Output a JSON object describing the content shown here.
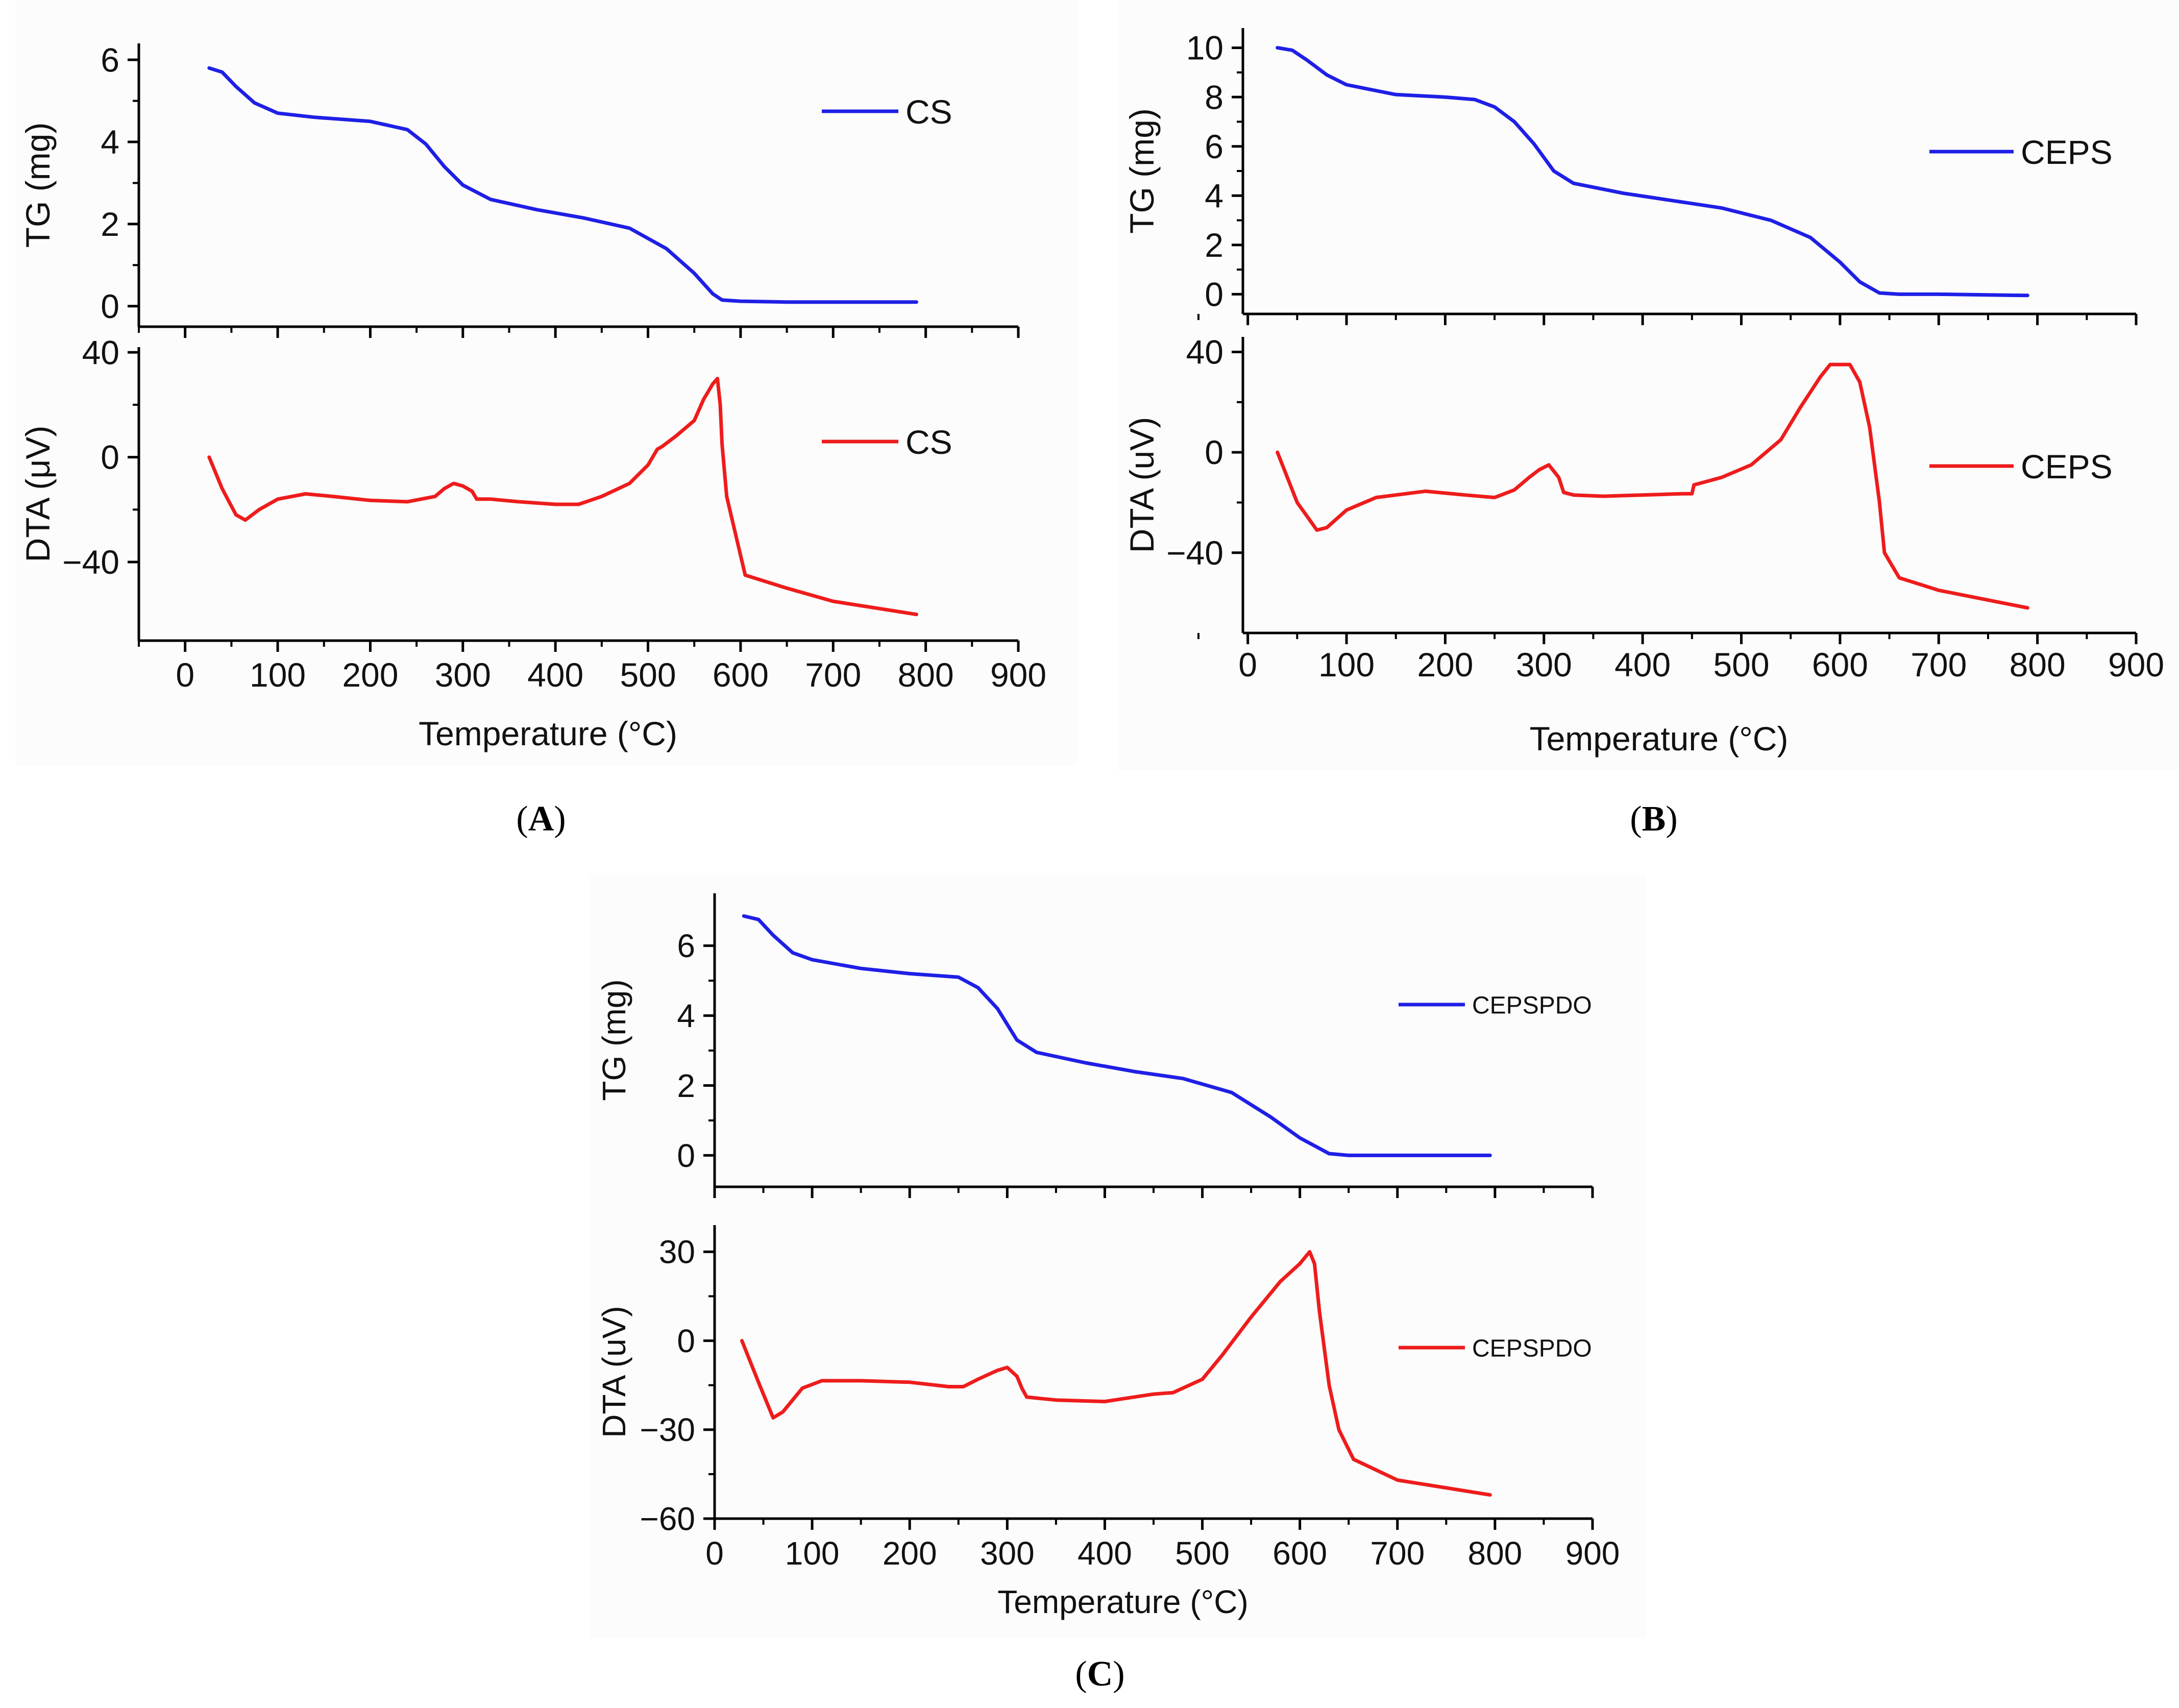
{
  "chart_data": [
    {
      "panel": "A",
      "type": "line",
      "xlabel": "Temperature (°C)",
      "xlim": [
        -50,
        900
      ],
      "xticks": [
        0,
        100,
        200,
        300,
        400,
        500,
        600,
        700,
        800,
        900
      ],
      "tg": {
        "ylabel": "TG (mg)",
        "ylim": [
          -0.5,
          6.4
        ],
        "yticks": [
          0,
          2,
          4,
          6
        ],
        "legend": "CS",
        "color": "#1f1fe6",
        "x": [
          26,
          40,
          55,
          75,
          100,
          140,
          200,
          240,
          260,
          280,
          300,
          330,
          380,
          430,
          480,
          520,
          550,
          570,
          580,
          600,
          650,
          700,
          790
        ],
        "y": [
          5.8,
          5.7,
          5.35,
          4.95,
          4.7,
          4.6,
          4.5,
          4.3,
          3.95,
          3.4,
          2.95,
          2.6,
          2.35,
          2.15,
          1.9,
          1.4,
          0.8,
          0.3,
          0.15,
          0.12,
          0.1,
          0.1,
          0.1
        ]
      },
      "dta": {
        "ylabel": "DTA (μV)",
        "ylim": [
          -70,
          42
        ],
        "yticks": [
          -40,
          0,
          40
        ],
        "legend": "CS",
        "color": "#ee1c1c",
        "x": [
          26,
          40,
          55,
          65,
          80,
          100,
          130,
          160,
          200,
          240,
          270,
          280,
          290,
          300,
          310,
          315,
          330,
          360,
          400,
          425,
          450,
          480,
          500,
          510,
          515,
          530,
          550,
          560,
          570,
          575,
          578,
          580,
          585,
          595,
          605,
          650,
          700,
          790
        ],
        "y": [
          0,
          -12,
          -22,
          -24,
          -20,
          -16,
          -14,
          -15,
          -16.5,
          -17,
          -15,
          -12,
          -10,
          -11,
          -13,
          -16,
          -16,
          -17,
          -18,
          -18,
          -15,
          -10,
          -3,
          3,
          4,
          8,
          14,
          22,
          28,
          30,
          20,
          5,
          -15,
          -30,
          -45,
          -50,
          -55,
          -60
        ]
      }
    },
    {
      "panel": "B",
      "type": "line",
      "xlabel": "Temperature (°C)",
      "xlim": [
        -5,
        900
      ],
      "xticks": [
        0,
        100,
        200,
        300,
        400,
        500,
        600,
        700,
        800,
        900
      ],
      "tg": {
        "ylabel": "TG (mg)",
        "ylim": [
          -0.8,
          10.8
        ],
        "yticks": [
          0,
          2,
          4,
          6,
          8,
          10
        ],
        "legend": "CEPS",
        "color": "#1f1fe6",
        "x": [
          30,
          45,
          60,
          80,
          100,
          150,
          200,
          230,
          250,
          270,
          290,
          310,
          330,
          380,
          430,
          480,
          530,
          570,
          600,
          620,
          640,
          660,
          700,
          790
        ],
        "y": [
          10,
          9.9,
          9.5,
          8.9,
          8.5,
          8.1,
          8,
          7.9,
          7.6,
          7,
          6.1,
          5,
          4.5,
          4.1,
          3.8,
          3.5,
          3,
          2.3,
          1.3,
          0.5,
          0.05,
          0,
          0,
          -0.05
        ]
      },
      "dta": {
        "ylabel": "DTA (uV)",
        "ylim": [
          -72,
          46
        ],
        "yticks": [
          -40,
          0,
          40
        ],
        "legend": "CEPS",
        "color": "#ee1c1c",
        "x": [
          30,
          50,
          70,
          80,
          100,
          130,
          180,
          220,
          250,
          270,
          285,
          295,
          305,
          315,
          320,
          330,
          360,
          400,
          440,
          450,
          452,
          480,
          510,
          540,
          560,
          580,
          590,
          610,
          620,
          630,
          640,
          645,
          660,
          700,
          790
        ],
        "y": [
          0,
          -20,
          -31,
          -30,
          -23,
          -18,
          -15.5,
          -17,
          -18,
          -15,
          -10,
          -7,
          -5,
          -10,
          -16,
          -17,
          -17.5,
          -17,
          -16.5,
          -16.5,
          -13,
          -10,
          -5,
          5,
          18,
          30,
          35,
          35,
          28,
          10,
          -20,
          -40,
          -50,
          -55,
          -62
        ]
      }
    },
    {
      "panel": "C",
      "type": "line",
      "xlabel": "Temperature (°C)",
      "xlim": [
        0,
        900
      ],
      "xticks": [
        0,
        100,
        200,
        300,
        400,
        500,
        600,
        700,
        800,
        900
      ],
      "tg": {
        "ylabel": "TG (mg)",
        "ylim": [
          -0.9,
          7.5
        ],
        "yticks": [
          0,
          2,
          4,
          6
        ],
        "legend": "CEPSPDO",
        "color": "#1f1fe6",
        "x": [
          30,
          45,
          60,
          80,
          100,
          150,
          200,
          250,
          270,
          290,
          310,
          330,
          380,
          430,
          480,
          530,
          570,
          600,
          630,
          650,
          700,
          795
        ],
        "y": [
          6.85,
          6.75,
          6.3,
          5.8,
          5.6,
          5.35,
          5.2,
          5.1,
          4.8,
          4.2,
          3.3,
          2.95,
          2.65,
          2.4,
          2.2,
          1.8,
          1.1,
          0.5,
          0.05,
          0,
          0,
          0
        ]
      },
      "dta": {
        "ylabel": "DTA (uV)",
        "ylim": [
          -60,
          39
        ],
        "yticks": [
          -60,
          -30,
          0,
          30
        ],
        "legend": "CEPSPDO",
        "color": "#ee1c1c",
        "x": [
          28,
          45,
          60,
          70,
          90,
          110,
          150,
          200,
          240,
          255,
          270,
          290,
          300,
          310,
          315,
          320,
          350,
          400,
          450,
          470,
          480,
          500,
          520,
          550,
          580,
          600,
          610,
          615,
          620,
          630,
          640,
          655,
          700,
          795
        ],
        "y": [
          0,
          -14,
          -26,
          -24,
          -16,
          -13.5,
          -13.5,
          -14,
          -15.5,
          -15.5,
          -13,
          -10,
          -9,
          -12,
          -16,
          -19,
          -20,
          -20.5,
          -18,
          -17.5,
          -16,
          -13,
          -5,
          8,
          20,
          26,
          30,
          26,
          10,
          -15,
          -30,
          -40,
          -47,
          -52
        ]
      }
    }
  ],
  "captions": {
    "a": "A",
    "b": "B",
    "c": "C"
  }
}
